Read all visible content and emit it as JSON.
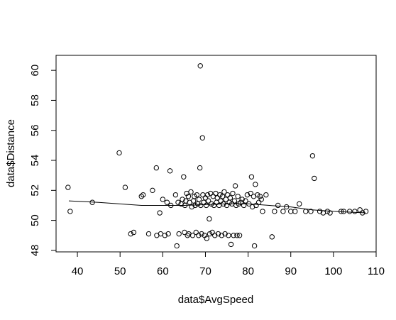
{
  "chart_data": {
    "type": "scatter",
    "title": "",
    "xlabel": "data$AvgSpeed",
    "ylabel": "data$Distance",
    "xlim": [
      35,
      110
    ],
    "ylim": [
      47.9,
      61.0
    ],
    "x_ticks": [
      40,
      50,
      60,
      70,
      80,
      90,
      100,
      110
    ],
    "y_ticks": [
      48,
      50,
      52,
      54,
      56,
      58,
      60
    ],
    "grid": false,
    "legend": "none",
    "point_style": "open-circle",
    "colors": {
      "points": "#000000",
      "line": "#000000",
      "axes": "#000000"
    },
    "points": [
      [
        37.8,
        52.2
      ],
      [
        38.3,
        50.6
      ],
      [
        43.5,
        51.2
      ],
      [
        49.8,
        54.5
      ],
      [
        51.2,
        52.2
      ],
      [
        52.5,
        49.1
      ],
      [
        53.2,
        49.2
      ],
      [
        55.0,
        51.6
      ],
      [
        55.4,
        51.7
      ],
      [
        56.7,
        49.1
      ],
      [
        57.6,
        52.0
      ],
      [
        58.5,
        53.5
      ],
      [
        58.6,
        49.0
      ],
      [
        59.3,
        50.5
      ],
      [
        59.5,
        49.1
      ],
      [
        60.0,
        51.4
      ],
      [
        60.5,
        49.0
      ],
      [
        61.0,
        51.2
      ],
      [
        61.3,
        49.1
      ],
      [
        61.7,
        53.3
      ],
      [
        61.9,
        51.0
      ],
      [
        63.0,
        51.7
      ],
      [
        63.3,
        48.3
      ],
      [
        63.6,
        51.2
      ],
      [
        63.8,
        49.1
      ],
      [
        64.3,
        51.1
      ],
      [
        64.6,
        51.4
      ],
      [
        64.9,
        52.9
      ],
      [
        65.1,
        49.2
      ],
      [
        65.2,
        51.0
      ],
      [
        65.4,
        51.3
      ],
      [
        65.6,
        51.8
      ],
      [
        65.8,
        49.0
      ],
      [
        66.0,
        51.6
      ],
      [
        66.1,
        49.1
      ],
      [
        66.3,
        51.2
      ],
      [
        66.6,
        51.9
      ],
      [
        66.8,
        50.9
      ],
      [
        67.0,
        49.0
      ],
      [
        67.2,
        51.3
      ],
      [
        67.4,
        51.6
      ],
      [
        67.6,
        51.0
      ],
      [
        67.8,
        49.2
      ],
      [
        68.0,
        51.7
      ],
      [
        68.2,
        51.1
      ],
      [
        68.4,
        49.0
      ],
      [
        68.5,
        51.4
      ],
      [
        68.7,
        53.5
      ],
      [
        68.8,
        60.3
      ],
      [
        68.9,
        51.0
      ],
      [
        69.1,
        49.1
      ],
      [
        69.3,
        55.5
      ],
      [
        69.4,
        51.7
      ],
      [
        69.6,
        51.2
      ],
      [
        69.8,
        49.0
      ],
      [
        70.0,
        51.5
      ],
      [
        70.2,
        51.0
      ],
      [
        70.3,
        48.8
      ],
      [
        70.5,
        51.7
      ],
      [
        70.7,
        51.3
      ],
      [
        70.9,
        50.1
      ],
      [
        71.0,
        49.1
      ],
      [
        71.2,
        51.8
      ],
      [
        71.4,
        51.1
      ],
      [
        71.6,
        49.2
      ],
      [
        71.8,
        51.6
      ],
      [
        72.0,
        51.0
      ],
      [
        72.2,
        49.0
      ],
      [
        72.4,
        51.8
      ],
      [
        72.6,
        51.2
      ],
      [
        72.8,
        51.5
      ],
      [
        73.0,
        49.1
      ],
      [
        73.2,
        51.0
      ],
      [
        73.4,
        51.7
      ],
      [
        73.6,
        51.3
      ],
      [
        73.8,
        49.0
      ],
      [
        74.0,
        51.6
      ],
      [
        74.2,
        51.1
      ],
      [
        74.4,
        51.9
      ],
      [
        74.6,
        49.1
      ],
      [
        74.8,
        51.4
      ],
      [
        75.0,
        51.0
      ],
      [
        75.2,
        51.7
      ],
      [
        75.4,
        49.0
      ],
      [
        75.6,
        51.2
      ],
      [
        75.8,
        51.5
      ],
      [
        76.0,
        48.4
      ],
      [
        76.2,
        51.1
      ],
      [
        76.4,
        51.8
      ],
      [
        76.6,
        49.0
      ],
      [
        76.8,
        51.3
      ],
      [
        77.0,
        52.3
      ],
      [
        77.2,
        51.0
      ],
      [
        77.4,
        49.0
      ],
      [
        77.6,
        51.6
      ],
      [
        77.8,
        51.1
      ],
      [
        78.0,
        49.0
      ],
      [
        78.3,
        51.2
      ],
      [
        78.6,
        51.4
      ],
      [
        79.0,
        51.0
      ],
      [
        79.4,
        51.3
      ],
      [
        79.8,
        51.7
      ],
      [
        80.2,
        51.1
      ],
      [
        80.6,
        51.8
      ],
      [
        80.8,
        52.9
      ],
      [
        81.0,
        50.9
      ],
      [
        81.3,
        51.6
      ],
      [
        81.5,
        48.3
      ],
      [
        81.7,
        52.4
      ],
      [
        81.9,
        51.0
      ],
      [
        82.2,
        51.7
      ],
      [
        82.5,
        51.2
      ],
      [
        82.8,
        51.6
      ],
      [
        83.1,
        51.4
      ],
      [
        83.4,
        50.6
      ],
      [
        84.2,
        51.7
      ],
      [
        85.6,
        48.9
      ],
      [
        86.2,
        50.6
      ],
      [
        87.0,
        51.0
      ],
      [
        88.2,
        50.6
      ],
      [
        89.0,
        50.9
      ],
      [
        90.0,
        50.6
      ],
      [
        91.0,
        50.6
      ],
      [
        92.0,
        51.1
      ],
      [
        93.5,
        50.6
      ],
      [
        94.7,
        50.6
      ],
      [
        95.1,
        54.3
      ],
      [
        95.5,
        52.8
      ],
      [
        96.8,
        50.6
      ],
      [
        97.6,
        50.5
      ],
      [
        98.6,
        50.6
      ],
      [
        99.2,
        50.5
      ],
      [
        101.8,
        50.6
      ],
      [
        102.4,
        50.6
      ],
      [
        103.8,
        50.6
      ],
      [
        105.0,
        50.6
      ],
      [
        106.2,
        50.7
      ],
      [
        106.8,
        50.5
      ],
      [
        107.6,
        50.6
      ]
    ],
    "fit_line": [
      [
        38.0,
        51.3
      ],
      [
        45.0,
        51.2
      ],
      [
        55.0,
        51.0
      ],
      [
        65.0,
        51.0
      ],
      [
        75.0,
        51.1
      ],
      [
        80.0,
        51.1
      ],
      [
        85.0,
        51.0
      ],
      [
        90.0,
        50.9
      ],
      [
        95.0,
        50.7
      ],
      [
        100.0,
        50.6
      ],
      [
        107.5,
        50.5
      ]
    ]
  }
}
